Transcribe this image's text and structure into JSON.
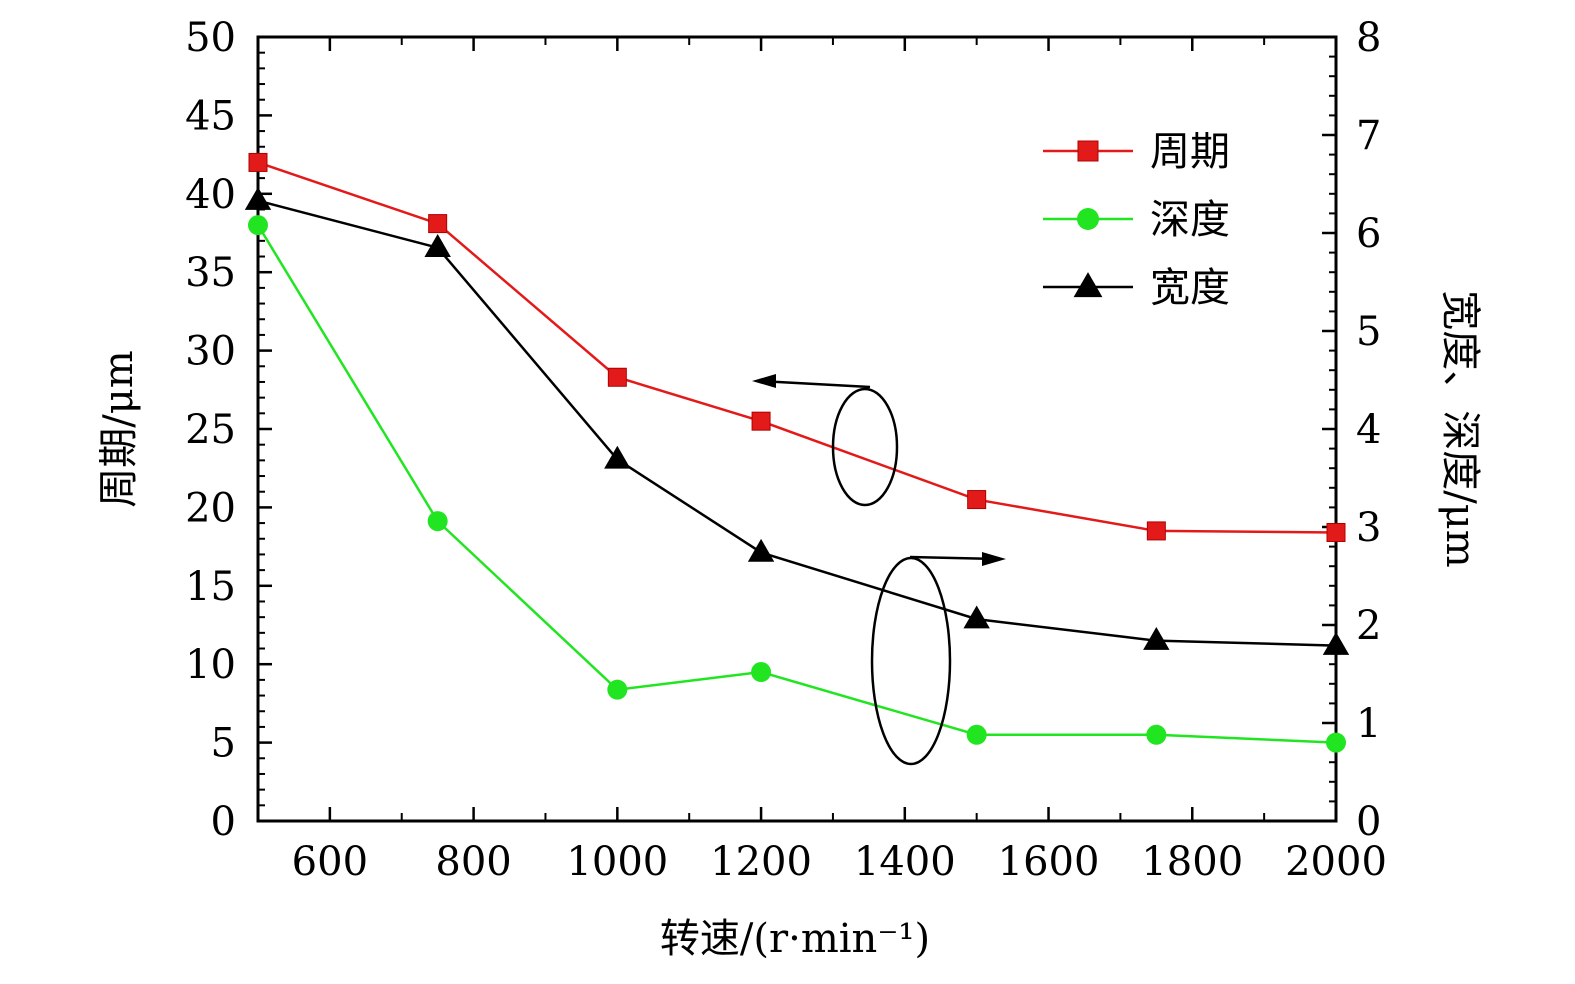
{
  "chart_data": {
    "type": "line",
    "xlabel": "转速/(r·min⁻¹)",
    "ylabel_left": "周期/μm",
    "ylabel_right": "宽度、深度/μm",
    "xlim": [
      500,
      2000
    ],
    "ylim_left": [
      0,
      50
    ],
    "ylim_right": [
      0,
      8
    ],
    "x_ticks": [
      600,
      800,
      1000,
      1200,
      1400,
      1600,
      1800,
      2000
    ],
    "y_left_ticks": [
      0,
      5,
      10,
      15,
      20,
      25,
      30,
      35,
      40,
      45,
      50
    ],
    "y_right_ticks": [
      0,
      1,
      2,
      3,
      4,
      5,
      6,
      7,
      8
    ],
    "grid": false,
    "legend_position": "top-right",
    "series": [
      {
        "name": "周期",
        "axis": "left",
        "color": "#e31a1a",
        "marker": "square",
        "x": [
          500,
          750,
          1000,
          1200,
          1500,
          1750,
          2000
        ],
        "values": [
          42.0,
          38.1,
          28.3,
          25.5,
          20.5,
          18.5,
          18.4
        ]
      },
      {
        "name": "深度",
        "axis": "right",
        "color": "#22e522",
        "marker": "circle",
        "x": [
          500,
          750,
          1000,
          1200,
          1500,
          1750,
          2000
        ],
        "values": [
          6.08,
          3.06,
          1.34,
          1.52,
          0.88,
          0.88,
          0.8
        ]
      },
      {
        "name": "宽度",
        "axis": "right",
        "color": "#000000",
        "marker": "triangle",
        "x": [
          500,
          750,
          1000,
          1200,
          1500,
          1750,
          2000
        ],
        "values": [
          6.33,
          5.85,
          3.69,
          2.74,
          2.06,
          1.84,
          1.79
        ]
      }
    ]
  }
}
